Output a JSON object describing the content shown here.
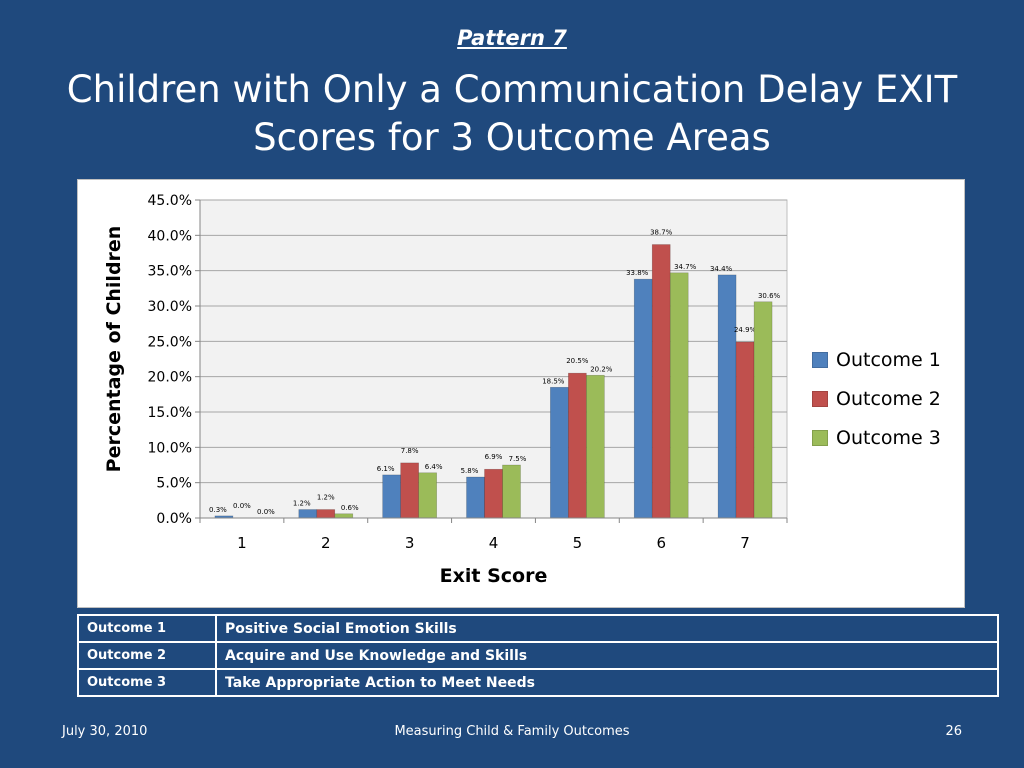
{
  "slide": {
    "pattern": "Pattern 7",
    "title_line1": "Children with Only a Communication Delay EXIT",
    "title_line2": "Scores for 3 Outcome Areas"
  },
  "chart_data": {
    "type": "bar",
    "xlabel": "Exit Score",
    "ylabel": "Percentage of Children",
    "categories": [
      "1",
      "2",
      "3",
      "4",
      "5",
      "6",
      "7"
    ],
    "ylim": [
      0,
      45
    ],
    "yticks": [
      "0.0%",
      "5.0%",
      "10.0%",
      "15.0%",
      "20.0%",
      "25.0%",
      "30.0%",
      "35.0%",
      "40.0%",
      "45.0%"
    ],
    "grid": true,
    "legend_position": "right",
    "series": [
      {
        "name": "Outcome 1",
        "color": "#4f81bd",
        "values": [
          0.3,
          1.2,
          6.1,
          5.8,
          18.5,
          33.8,
          34.4
        ],
        "labels": [
          "0.3%",
          "1.2%",
          "6.1%",
          "5.8%",
          "18.5%",
          "33.8%",
          "34.4%"
        ]
      },
      {
        "name": "Outcome 2",
        "color": "#c0504d",
        "values": [
          0.0,
          1.2,
          7.8,
          6.9,
          20.5,
          38.7,
          24.9
        ],
        "labels": [
          "0.0%",
          "1.2%",
          "7.8%",
          "6.9%",
          "20.5%",
          "38.7%",
          "24.9%"
        ]
      },
      {
        "name": "Outcome 3",
        "color": "#9bbb59",
        "values": [
          0.0,
          0.6,
          6.4,
          7.5,
          20.2,
          34.7,
          30.6
        ],
        "labels": [
          "0.0%",
          "0.6%",
          "6.4%",
          "7.5%",
          "20.2%",
          "34.7%",
          "30.6%"
        ]
      }
    ]
  },
  "outcomes_table": [
    {
      "key": "Outcome 1",
      "desc": "Positive Social Emotion Skills"
    },
    {
      "key": "Outcome 2",
      "desc": "Acquire and Use Knowledge and Skills"
    },
    {
      "key": "Outcome 3",
      "desc": "Take Appropriate Action to Meet Needs"
    }
  ],
  "footer": {
    "date": "July 30, 2010",
    "center": "Measuring Child & Family Outcomes",
    "page": "26"
  }
}
